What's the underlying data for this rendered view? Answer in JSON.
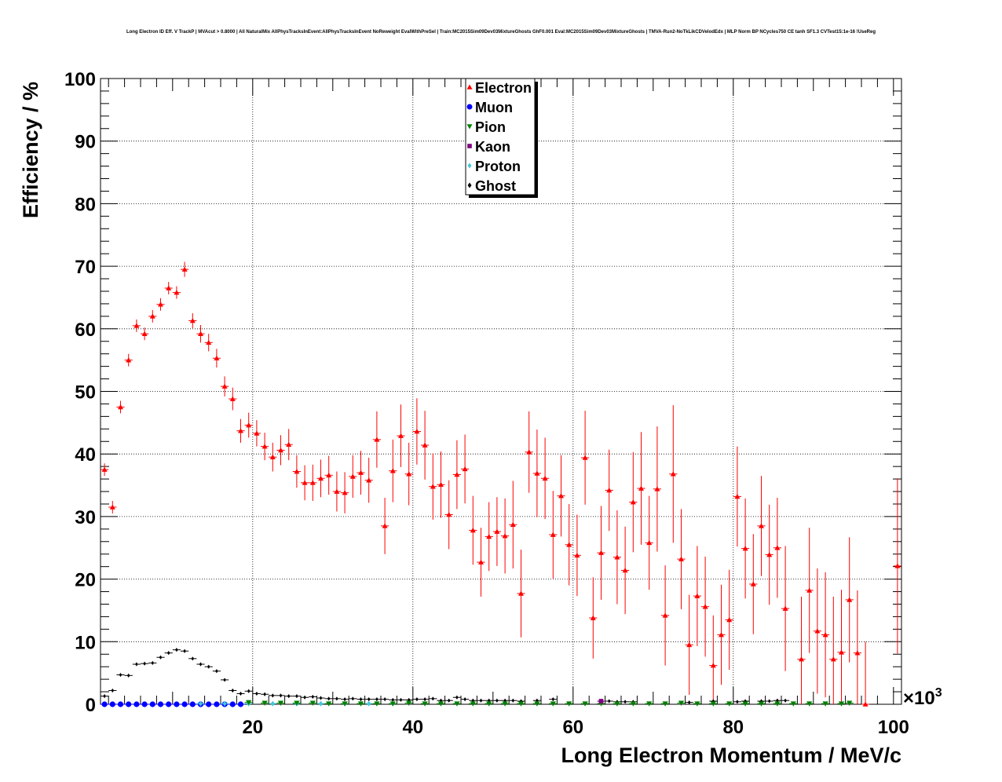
{
  "chart_data": {
    "type": "scatter",
    "title": "Long Electron ID Eff. V TrackP | MVAcut > 0.8000 | All NaturalMix AllPhysTracksInEvent:AllPhysTracksInEvent NoReweight EvalWithPreSel | Train:MC2015Sim09Dev03MixtureGhosts GhF0.001 Eval:MC2015Sim09Dev03MixtureGhosts | TMVA-Run2-NoTkLikCDVelodEdx | MLP Norm BP NCycles750 CE tanh SF1.3 CVTest15:1e-16 !UseReg",
    "xlabel": "Long Electron Momentum / MeV/c",
    "ylabel": "Efficiency / %",
    "x_exponent_label": "×10",
    "x_exponent_power": "3",
    "xlim": [
      1,
      101
    ],
    "ylim": [
      0,
      100
    ],
    "x_ticks": [
      "20",
      "40",
      "60",
      "80",
      "100"
    ],
    "y_ticks": [
      "0",
      "10",
      "20",
      "30",
      "40",
      "50",
      "60",
      "70",
      "80",
      "90",
      "100"
    ],
    "grid": true,
    "legend_position": "top-center",
    "series": [
      {
        "name": "Electron",
        "color": "#ff0000",
        "marker": "triangle-up",
        "x": [
          1.5,
          2.5,
          3.5,
          4.5,
          5.5,
          6.5,
          7.5,
          8.5,
          9.5,
          10.5,
          11.5,
          12.5,
          13.5,
          14.5,
          15.5,
          16.5,
          17.5,
          18.5,
          19.5,
          20.5,
          21.5,
          22.5,
          23.5,
          24.5,
          25.5,
          26.5,
          27.5,
          28.5,
          29.5,
          30.5,
          31.5,
          32.5,
          33.5,
          34.5,
          35.5,
          36.5,
          37.5,
          38.5,
          39.5,
          40.5,
          41.5,
          42.5,
          43.5,
          44.5,
          45.5,
          46.5,
          47.5,
          48.5,
          49.5,
          50.5,
          51.5,
          52.5,
          53.5,
          54.5,
          55.5,
          56.5,
          57.5,
          58.5,
          59.5,
          60.5,
          61.5,
          62.5,
          63.5,
          64.5,
          65.5,
          66.5,
          67.5,
          68.5,
          69.5,
          70.5,
          71.5,
          72.5,
          73.5,
          74.5,
          75.5,
          76.5,
          77.5,
          78.5,
          79.5,
          80.5,
          81.5,
          82.5,
          83.5,
          84.5,
          85.5,
          86.5,
          88.5,
          89.5,
          90.5,
          91.5,
          92.5,
          93.5,
          94.5,
          95.5,
          96.5,
          100.5
        ],
        "y": [
          37.5,
          31.5,
          47.5,
          55,
          60.5,
          59.2,
          62,
          63.9,
          66.5,
          65.8,
          69.5,
          61.3,
          59.2,
          57.8,
          55.3,
          50.8,
          48.8,
          43.7,
          44.6,
          43.3,
          41.2,
          39.5,
          40.6,
          41.5,
          37.2,
          35.4,
          35.4,
          36.1,
          36.6,
          34,
          33.8,
          36.4,
          37,
          35.8,
          42.3,
          28.5,
          37.3,
          42.9,
          36.8,
          43.6,
          41.4,
          34.8,
          35.1,
          30.3,
          36.7,
          37.6,
          27.8,
          22.7,
          26.8,
          27.6,
          26.9,
          28.7,
          17.7,
          40.3,
          36.9,
          36.1,
          27.1,
          33.3,
          25.5,
          23.8,
          39.4,
          13.8,
          24.2,
          34.2,
          23.5,
          21.4,
          32.3,
          34.5,
          25.8,
          34.4,
          14.2,
          36.8,
          23.2,
          9.5,
          17.3,
          15.6,
          6.2,
          11.1,
          13.5,
          33.2,
          24.9,
          19.2,
          28.5,
          23.9,
          25,
          15.3,
          7.2,
          18.2,
          11.7,
          11.1,
          7.2,
          8.3,
          16.7,
          8.2,
          0,
          22.1
        ],
        "err": [
          1,
          1,
          1,
          1,
          1,
          1,
          1,
          1,
          1,
          1,
          1.2,
          1.2,
          1.4,
          1.4,
          1.5,
          1.6,
          1.8,
          1.9,
          2,
          2.1,
          2.2,
          2.3,
          2.4,
          2.5,
          2.6,
          2.8,
          2.9,
          3,
          3.1,
          3.2,
          3.3,
          3.4,
          3.5,
          3.6,
          4.5,
          4.5,
          5,
          5,
          5,
          5.3,
          5.5,
          5.3,
          5.3,
          5.5,
          5.5,
          5.5,
          5.5,
          5.5,
          5.5,
          5.5,
          6,
          7,
          7,
          6.5,
          7,
          6.5,
          7,
          6.5,
          6.5,
          6.5,
          7.5,
          6.5,
          7.5,
          6.5,
          7.5,
          7,
          8,
          9,
          7.5,
          10,
          8,
          11,
          8,
          8,
          8,
          8,
          8,
          8,
          8,
          8,
          8,
          8,
          8,
          8,
          8,
          10,
          10,
          10,
          10,
          10,
          10,
          10,
          10,
          10,
          10,
          14
        ]
      },
      {
        "name": "Muon",
        "color": "#0000ff",
        "marker": "circle",
        "x": [
          1.5,
          2.5,
          3.5,
          4.5,
          5.5,
          6.5,
          7.5,
          8.5,
          9.5,
          10.5,
          11.5,
          12.5,
          13.5,
          14.5,
          15.5,
          16.5,
          17.5,
          18.5
        ],
        "y": [
          0,
          0,
          0,
          0,
          0,
          0,
          0,
          0,
          0,
          0,
          0,
          0,
          0,
          0,
          0,
          0,
          0,
          0
        ]
      },
      {
        "name": "Pion",
        "color": "#008000",
        "marker": "triangle-down",
        "x": [
          19.5,
          21.5,
          23.5,
          25.5,
          27.5,
          29.5,
          31.5,
          33.5,
          35.5,
          37.5,
          39.5,
          41.5,
          43.5,
          45.5,
          47.5,
          49.5,
          51.5,
          53.5,
          55.5,
          57.5,
          59.5,
          61.5,
          63.5,
          65.5,
          67.5,
          69.5,
          71.5,
          73.5,
          75.5,
          77.5,
          79.5,
          81.5,
          83.5,
          85.5,
          87.5,
          89.5,
          91.5,
          93.5,
          94.5
        ],
        "y": [
          0.3,
          0.2,
          0.2,
          0.2,
          0.2,
          0.1,
          0.1,
          0.1,
          0.1,
          0.1,
          0.2,
          0.1,
          0.1,
          0.1,
          0.1,
          0.1,
          0.1,
          0.1,
          0.1,
          0.1,
          0.1,
          0.1,
          0.1,
          0.1,
          0.1,
          0.1,
          0.1,
          0.2,
          0.1,
          0.1,
          0.1,
          0.1,
          0.1,
          0.1,
          0.1,
          0.1,
          0.1,
          0.1,
          0.2
        ]
      },
      {
        "name": "Kaon",
        "color": "#800080",
        "marker": "square",
        "x": [
          63.5
        ],
        "y": [
          0.5
        ]
      },
      {
        "name": "Proton",
        "color": "#40c8d8",
        "marker": "diamond",
        "x": [
          13.5,
          16.5,
          19.5,
          22.5,
          25.5,
          28.5,
          31.5,
          34.5,
          37.5
        ],
        "y": [
          0.1,
          0.1,
          0.1,
          0.1,
          0.1,
          0.1,
          0.1,
          0.1,
          0.1
        ]
      },
      {
        "name": "Ghost",
        "color": "#000000",
        "marker": "diamond",
        "x": [
          1.5,
          2.5,
          3.5,
          4.5,
          5.5,
          6.5,
          7.5,
          8.5,
          9.5,
          10.5,
          11.5,
          12.5,
          13.5,
          14.5,
          15.5,
          16.5,
          17.5,
          18.5,
          19.5,
          20.5,
          21.5,
          22.5,
          23.5,
          24.5,
          25.5,
          26.5,
          27.5,
          28.5,
          29.5,
          30.5,
          31.5,
          32.5,
          33.5,
          34.5,
          35.5,
          36.5,
          37.5,
          38.5,
          39.5,
          40.5,
          41.5,
          42.5,
          43.5,
          44.5,
          45.5,
          46.5,
          47.5,
          48.5,
          49.5,
          50.5,
          51.5,
          52.5,
          53.5,
          55.5,
          57.5,
          64.5,
          65.5,
          66.5,
          67.5,
          74.5,
          77.5,
          80.5,
          81.5,
          83.5,
          84.5,
          85.5,
          86.5
        ],
        "y": [
          1.3,
          2.2,
          4.7,
          4.6,
          6.4,
          6.5,
          6.6,
          7.5,
          8.2,
          8.7,
          8.5,
          7.3,
          6.4,
          6,
          5.3,
          3.9,
          2.2,
          1.7,
          2.1,
          1.7,
          1.6,
          1.4,
          1.4,
          1.3,
          1.3,
          1.1,
          1.2,
          1,
          0.9,
          0.9,
          0.8,
          0.9,
          0.8,
          0.8,
          0.8,
          0.8,
          0.7,
          0.7,
          0.7,
          0.8,
          0.8,
          0.9,
          0.6,
          0.6,
          1.1,
          0.8,
          0.6,
          0.6,
          0.6,
          0.6,
          0.6,
          0.6,
          0.5,
          0.6,
          0.8,
          0.5,
          0.4,
          0.4,
          0.4,
          0.3,
          0.5,
          0.4,
          0.5,
          0.5,
          0.5,
          0.6,
          0.6
        ]
      }
    ]
  }
}
